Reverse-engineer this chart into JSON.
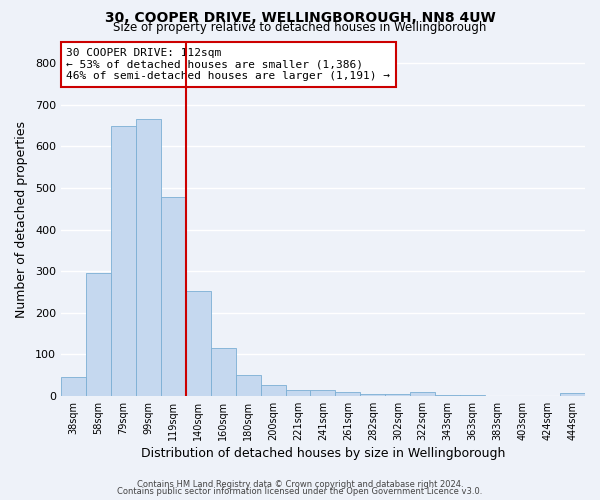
{
  "title": "30, COOPER DRIVE, WELLINGBOROUGH, NN8 4UW",
  "subtitle": "Size of property relative to detached houses in Wellingborough",
  "xlabel": "Distribution of detached houses by size in Wellingborough",
  "ylabel": "Number of detached properties",
  "bar_labels": [
    "38sqm",
    "58sqm",
    "79sqm",
    "99sqm",
    "119sqm",
    "140sqm",
    "160sqm",
    "180sqm",
    "200sqm",
    "221sqm",
    "241sqm",
    "261sqm",
    "282sqm",
    "302sqm",
    "322sqm",
    "343sqm",
    "363sqm",
    "383sqm",
    "403sqm",
    "424sqm",
    "444sqm"
  ],
  "bar_values": [
    46,
    295,
    650,
    665,
    478,
    252,
    115,
    50,
    27,
    15,
    15,
    8,
    5,
    5,
    8,
    3,
    3,
    0,
    0,
    0,
    7
  ],
  "bar_color": "#c5d8ef",
  "bar_edge_color": "#7bafd4",
  "background_color": "#eef2f9",
  "grid_color": "#ffffff",
  "vline_color": "#cc0000",
  "annotation_text": "30 COOPER DRIVE: 112sqm\n← 53% of detached houses are smaller (1,386)\n46% of semi-detached houses are larger (1,191) →",
  "annotation_box_edge_color": "#cc0000",
  "ylim": [
    0,
    850
  ],
  "yticks": [
    0,
    100,
    200,
    300,
    400,
    500,
    600,
    700,
    800
  ],
  "footer_line1": "Contains HM Land Registry data © Crown copyright and database right 2024.",
  "footer_line2": "Contains public sector information licensed under the Open Government Licence v3.0."
}
